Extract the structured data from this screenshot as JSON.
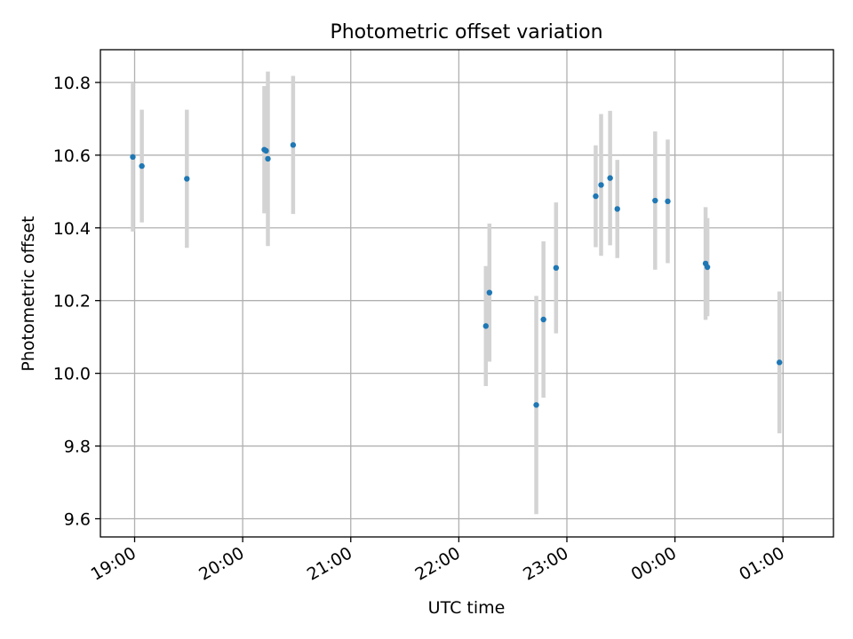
{
  "chart_data": {
    "type": "scatter",
    "title": "Photometric offset variation",
    "xlabel": "UTC time",
    "ylabel": "Photometric offset",
    "x_axis_type": "time",
    "xlim": [
      "18:41",
      "01:28"
    ],
    "ylim": [
      9.55,
      10.89
    ],
    "x_ticks": [
      {
        "time": "19:00",
        "label": "19:00"
      },
      {
        "time": "20:00",
        "label": "20:00"
      },
      {
        "time": "21:00",
        "label": "21:00"
      },
      {
        "time": "22:00",
        "label": "22:00"
      },
      {
        "time": "23:00",
        "label": "23:00"
      },
      {
        "time": "00:00",
        "label": "00:00"
      },
      {
        "time": "01:00",
        "label": "01:00"
      }
    ],
    "y_ticks": [
      9.6,
      9.8,
      10.0,
      10.2,
      10.4,
      10.6,
      10.8
    ],
    "grid": true,
    "legend": "none",
    "colors": {
      "marker": "#1f77b4",
      "errorbar": "#d3d3d3"
    },
    "series": [
      {
        "points": [
          {
            "time": "18:59",
            "y": 10.595,
            "err": 0.205
          },
          {
            "time": "19:04",
            "y": 10.57,
            "err": 0.155
          },
          {
            "time": "19:29",
            "y": 10.535,
            "err": 0.19
          },
          {
            "time": "20:12",
            "y": 10.615,
            "err": 0.175
          },
          {
            "time": "20:13",
            "y": 10.612,
            "err": 0.17
          },
          {
            "time": "20:14",
            "y": 10.59,
            "err": 0.24
          },
          {
            "time": "20:28",
            "y": 10.628,
            "err": 0.19
          },
          {
            "time": "22:15",
            "y": 10.13,
            "err": 0.165
          },
          {
            "time": "22:17",
            "y": 10.222,
            "err": 0.19
          },
          {
            "time": "22:43",
            "y": 9.913,
            "err": 0.3
          },
          {
            "time": "22:47",
            "y": 10.148,
            "err": 0.215
          },
          {
            "time": "22:54",
            "y": 10.29,
            "err": 0.18
          },
          {
            "time": "23:16",
            "y": 10.487,
            "err": 0.14
          },
          {
            "time": "23:19",
            "y": 10.518,
            "err": 0.195
          },
          {
            "time": "23:24",
            "y": 10.537,
            "err": 0.185
          },
          {
            "time": "23:28",
            "y": 10.452,
            "err": 0.135
          },
          {
            "time": "23:49",
            "y": 10.475,
            "err": 0.19
          },
          {
            "time": "23:56",
            "y": 10.473,
            "err": 0.17
          },
          {
            "time": "00:17",
            "y": 10.302,
            "err": 0.155
          },
          {
            "time": "00:18",
            "y": 10.292,
            "err": 0.135
          },
          {
            "time": "00:58",
            "y": 10.03,
            "err": 0.195
          }
        ]
      }
    ]
  }
}
